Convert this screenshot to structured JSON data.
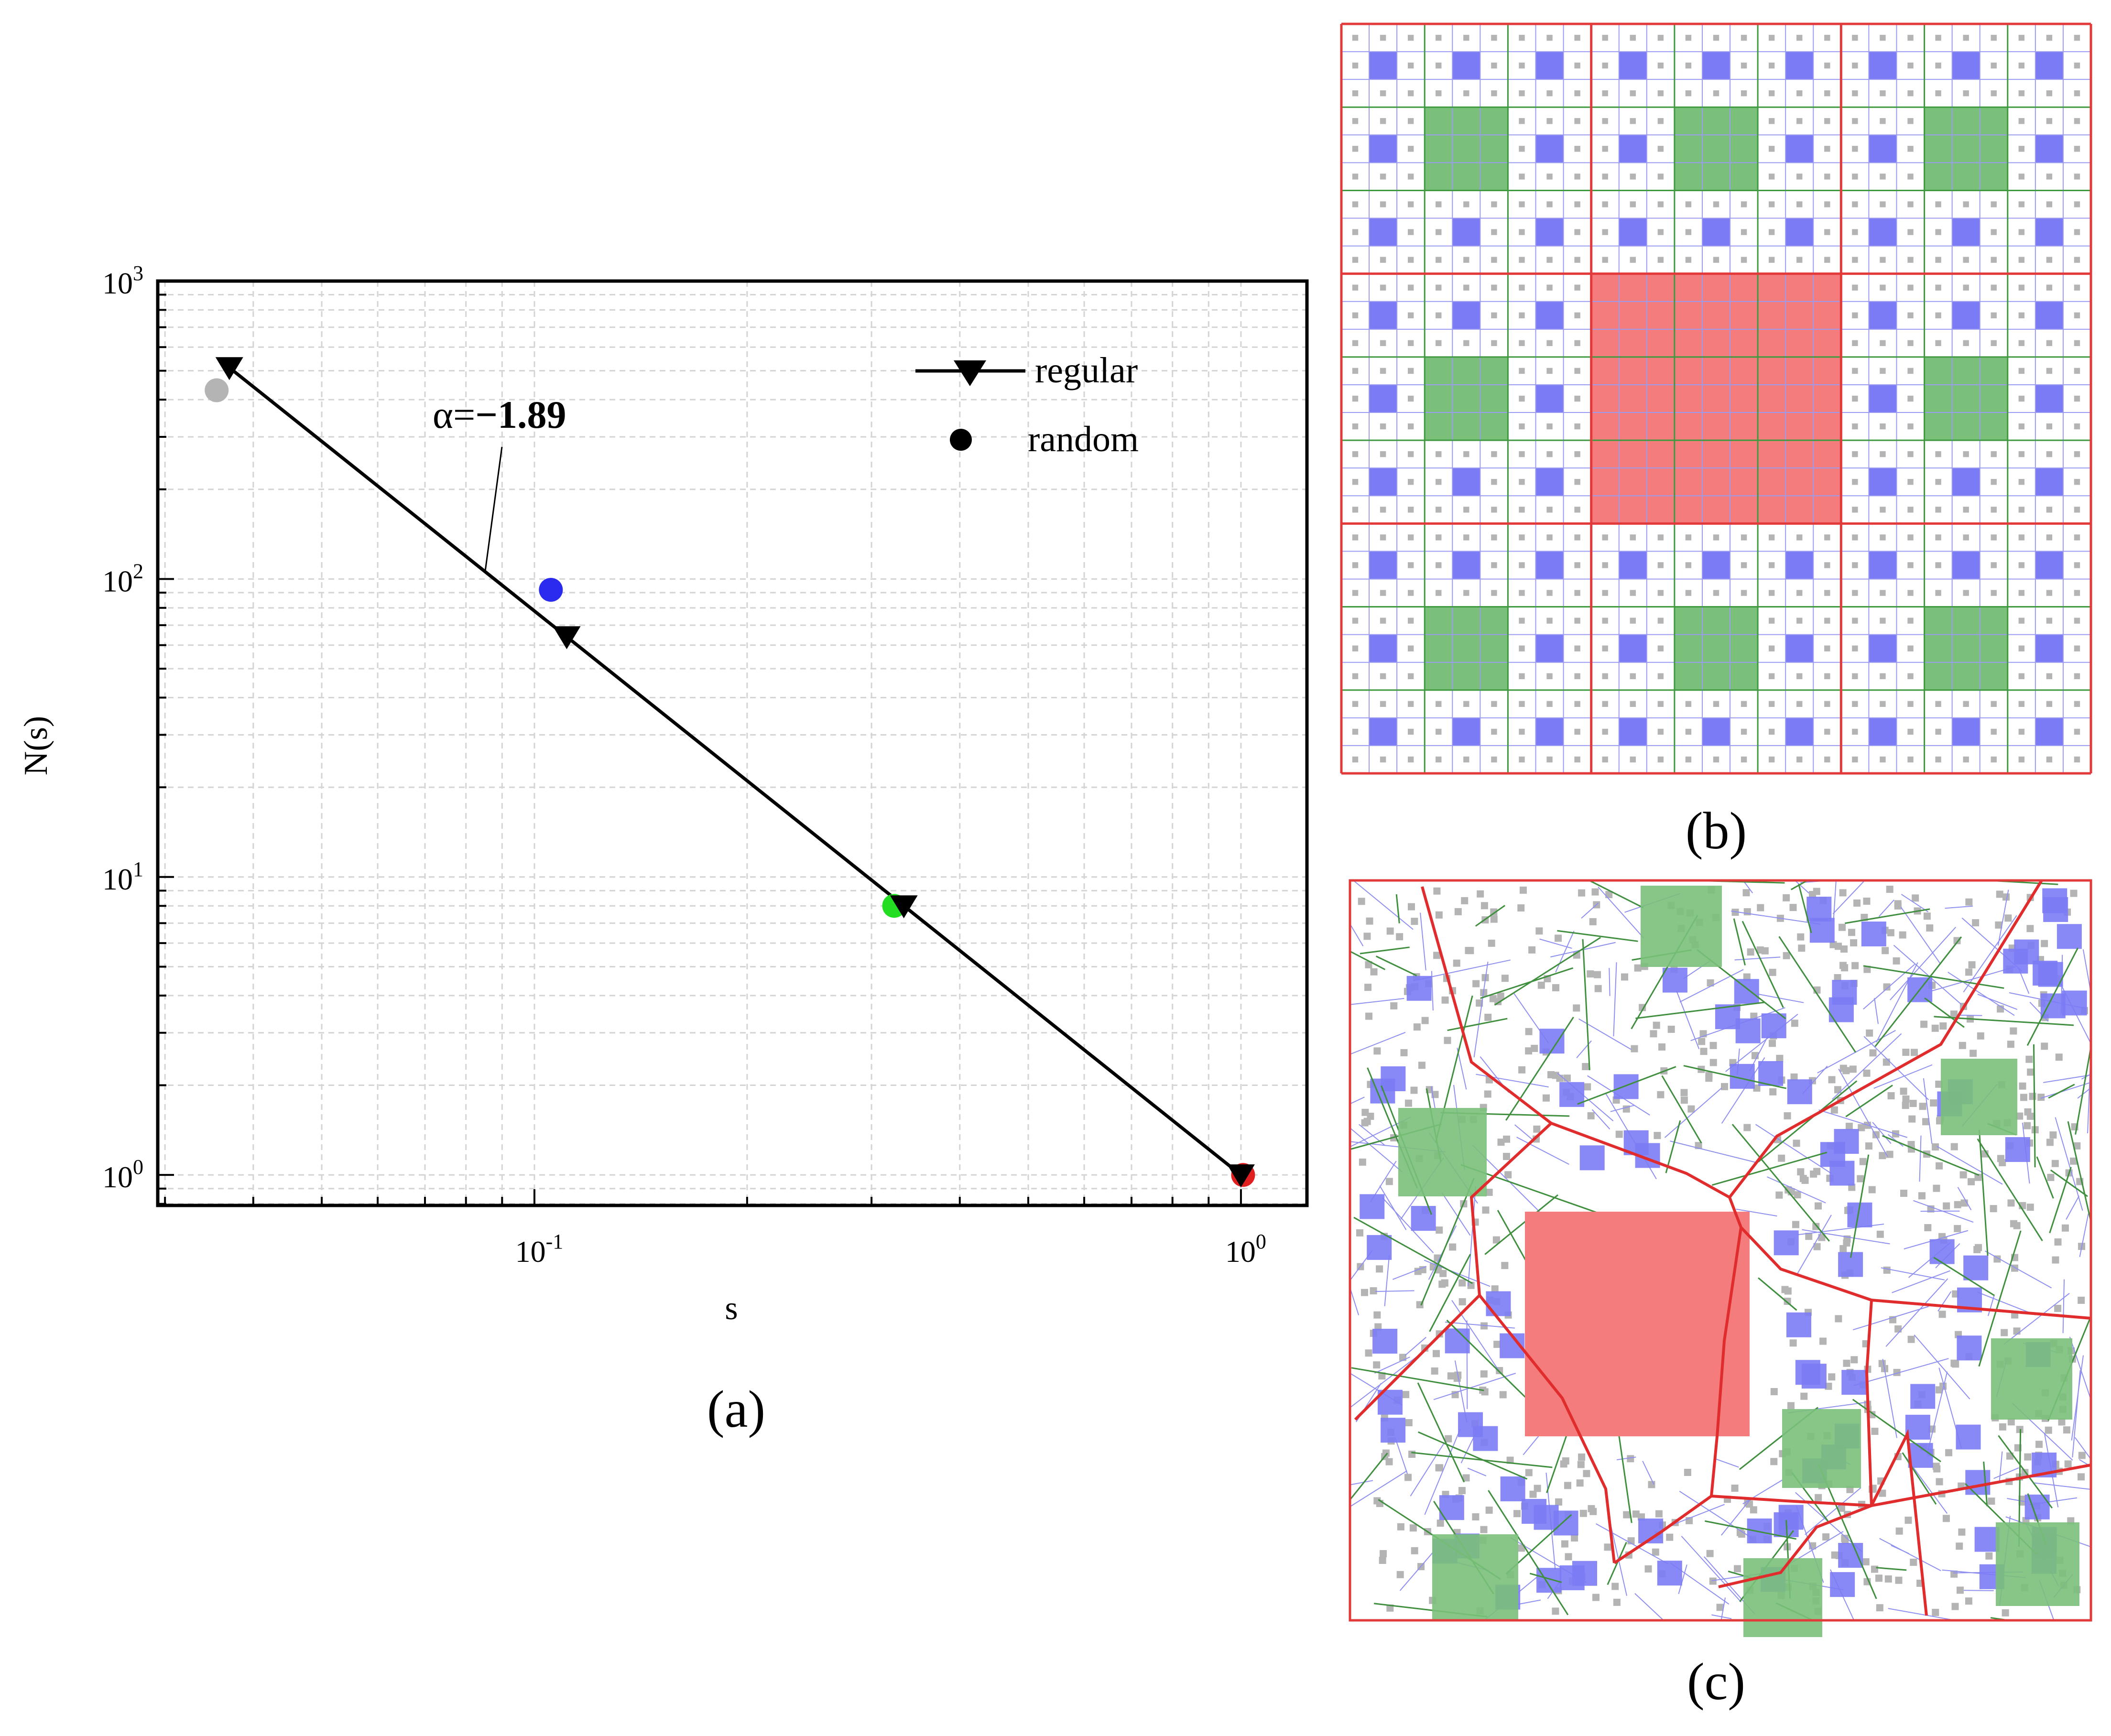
{
  "chart_data": {
    "type": "scatter",
    "panel_label": "(a)",
    "xlabel": "s",
    "ylabel": "N(s)",
    "xscale": "log",
    "yscale": "log",
    "xlim": [
      0.0293,
      1.24
    ],
    "ylim": [
      0.79,
      1000
    ],
    "grid": true,
    "x_tick_labels": [
      {
        "value": 0.1,
        "base": "10",
        "exp": "-1"
      },
      {
        "value": 1,
        "base": "10",
        "exp": "0"
      }
    ],
    "y_tick_labels": [
      {
        "value": 1,
        "base": "10",
        "exp": "0"
      },
      {
        "value": 10,
        "base": "10",
        "exp": "1"
      },
      {
        "value": 100,
        "base": "10",
        "exp": "2"
      },
      {
        "value": 1000,
        "base": "10",
        "exp": "3"
      }
    ],
    "series": [
      {
        "name": "regular",
        "marker": "triangle-down",
        "line": true,
        "color": "#000000",
        "points": [
          {
            "x": 0.037,
            "y": 512
          },
          {
            "x": 0.1111,
            "y": 64
          },
          {
            "x": 0.3333,
            "y": 8
          },
          {
            "x": 1.0,
            "y": 1
          }
        ]
      },
      {
        "name": "random",
        "marker": "circle",
        "line": false,
        "color": "#000000",
        "points": [
          {
            "x": 0.0355,
            "y": 430,
            "color": "#b4b4b4"
          },
          {
            "x": 0.1055,
            "y": 92,
            "color": "#2b2bf0"
          },
          {
            "x": 0.323,
            "y": 8,
            "color": "#22dd22"
          },
          {
            "x": 1.007,
            "y": 1,
            "color": "#e02020"
          }
        ]
      }
    ],
    "annotation": {
      "prefix": "α=",
      "value": "−1.89"
    },
    "legend_position": "top-right"
  },
  "panels": {
    "b": {
      "label": "(b)",
      "description": "Regular Sierpinski-carpet subdivision",
      "colors": {
        "level1": "#f47c7c",
        "level2": "#7ac07a",
        "level3": "#7b7bf5",
        "level4": "#b4b4b4"
      }
    },
    "c": {
      "label": "(c)",
      "description": "Random Voronoi subdivision",
      "colors": {
        "level1": "#f47c7c",
        "level2": "#7ac07a",
        "level3": "#7b7bf5",
        "level4": "#b4b4b4"
      }
    }
  }
}
